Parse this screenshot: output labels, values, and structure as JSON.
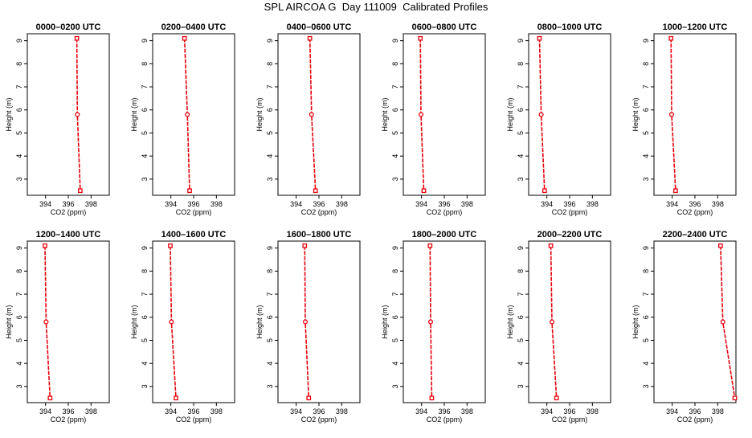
{
  "title": "SPL AIRCOA G  Day 111009  Calibrated Profiles",
  "colors": {
    "line": "#e8000b",
    "axis": "#000000",
    "background": "#ffffff"
  },
  "chart_data": [
    {
      "type": "line",
      "title": "0000–0200 UTC",
      "xlabel": "CO2 (ppm)",
      "ylabel": "Height (m)",
      "xlim": [
        392.4,
        399.6
      ],
      "ylim": [
        2.3,
        9.3
      ],
      "xticks": [
        394,
        396,
        398
      ],
      "yticks": [
        3,
        4,
        5,
        6,
        7,
        8,
        9
      ],
      "series": [
        {
          "x": [
            396.75,
            396.8,
            397.05
          ],
          "y": [
            9.1,
            5.8,
            2.5
          ]
        }
      ]
    },
    {
      "type": "line",
      "title": "0200–0400 UTC",
      "xlabel": "CO2 (ppm)",
      "ylabel": "Height (m)",
      "xlim": [
        392.4,
        399.6
      ],
      "ylim": [
        2.3,
        9.3
      ],
      "xticks": [
        394,
        396,
        398
      ],
      "yticks": [
        3,
        4,
        5,
        6,
        7,
        8,
        9
      ],
      "series": [
        {
          "x": [
            395.2,
            395.45,
            395.65
          ],
          "y": [
            9.1,
            5.8,
            2.5
          ]
        }
      ]
    },
    {
      "type": "line",
      "title": "0400–0600 UTC",
      "xlabel": "CO2 (ppm)",
      "ylabel": "Height (m)",
      "xlim": [
        392.4,
        399.6
      ],
      "ylim": [
        2.3,
        9.3
      ],
      "xticks": [
        394,
        396,
        398
      ],
      "yticks": [
        3,
        4,
        5,
        6,
        7,
        8,
        9
      ],
      "series": [
        {
          "x": [
            395.2,
            395.35,
            395.7
          ],
          "y": [
            9.1,
            5.8,
            2.5
          ]
        }
      ]
    },
    {
      "type": "line",
      "title": "0600–0800 UTC",
      "xlabel": "CO2 (ppm)",
      "ylabel": "Height (m)",
      "xlim": [
        392.4,
        399.6
      ],
      "ylim": [
        2.3,
        9.3
      ],
      "xticks": [
        394,
        396,
        398
      ],
      "yticks": [
        3,
        4,
        5,
        6,
        7,
        8,
        9
      ],
      "series": [
        {
          "x": [
            393.9,
            393.95,
            394.2
          ],
          "y": [
            9.1,
            5.8,
            2.5
          ]
        }
      ]
    },
    {
      "type": "line",
      "title": "0800–1000 UTC",
      "xlabel": "CO2 (ppm)",
      "ylabel": "Height (m)",
      "xlim": [
        392.4,
        399.6
      ],
      "ylim": [
        2.3,
        9.3
      ],
      "xticks": [
        394,
        396,
        398
      ],
      "yticks": [
        3,
        4,
        5,
        6,
        7,
        8,
        9
      ],
      "series": [
        {
          "x": [
            393.35,
            393.5,
            393.8
          ],
          "y": [
            9.1,
            5.8,
            2.5
          ]
        }
      ]
    },
    {
      "type": "line",
      "title": "1000–1200 UTC",
      "xlabel": "CO2 (ppm)",
      "ylabel": "Height (m)",
      "xlim": [
        392.4,
        399.6
      ],
      "ylim": [
        2.3,
        9.3
      ],
      "xticks": [
        394,
        396,
        398
      ],
      "yticks": [
        3,
        4,
        5,
        6,
        7,
        8,
        9
      ],
      "series": [
        {
          "x": [
            393.9,
            393.95,
            394.3
          ],
          "y": [
            9.1,
            5.8,
            2.5
          ]
        }
      ]
    },
    {
      "type": "line",
      "title": "1200–1400 UTC",
      "xlabel": "CO2 (ppm)",
      "ylabel": "Height (m)",
      "xlim": [
        392.4,
        399.6
      ],
      "ylim": [
        2.3,
        9.3
      ],
      "xticks": [
        394,
        396,
        398
      ],
      "yticks": [
        3,
        4,
        5,
        6,
        7,
        8,
        9
      ],
      "series": [
        {
          "x": [
            393.95,
            394.05,
            394.4
          ],
          "y": [
            9.1,
            5.8,
            2.5
          ]
        }
      ]
    },
    {
      "type": "line",
      "title": "1400–1600 UTC",
      "xlabel": "CO2 (ppm)",
      "ylabel": "Height (m)",
      "xlim": [
        392.4,
        399.6
      ],
      "ylim": [
        2.3,
        9.3
      ],
      "xticks": [
        394,
        396,
        398
      ],
      "yticks": [
        3,
        4,
        5,
        6,
        7,
        8,
        9
      ],
      "series": [
        {
          "x": [
            393.95,
            394.05,
            394.45
          ],
          "y": [
            9.1,
            5.8,
            2.5
          ]
        }
      ]
    },
    {
      "type": "line",
      "title": "1600–1800 UTC",
      "xlabel": "CO2 (ppm)",
      "ylabel": "Height (m)",
      "xlim": [
        392.4,
        399.6
      ],
      "ylim": [
        2.3,
        9.3
      ],
      "xticks": [
        394,
        396,
        398
      ],
      "yticks": [
        3,
        4,
        5,
        6,
        7,
        8,
        9
      ],
      "series": [
        {
          "x": [
            394.75,
            394.8,
            395.1
          ],
          "y": [
            9.1,
            5.8,
            2.5
          ]
        }
      ]
    },
    {
      "type": "line",
      "title": "1800–2000 UTC",
      "xlabel": "CO2 (ppm)",
      "ylabel": "Height (m)",
      "xlim": [
        392.4,
        399.6
      ],
      "ylim": [
        2.3,
        9.3
      ],
      "xticks": [
        394,
        396,
        398
      ],
      "yticks": [
        3,
        4,
        5,
        6,
        7,
        8,
        9
      ],
      "series": [
        {
          "x": [
            394.75,
            394.8,
            394.9
          ],
          "y": [
            9.1,
            5.8,
            2.5
          ]
        }
      ]
    },
    {
      "type": "line",
      "title": "2000–2200 UTC",
      "xlabel": "CO2 (ppm)",
      "ylabel": "Height (m)",
      "xlim": [
        392.4,
        399.6
      ],
      "ylim": [
        2.3,
        9.3
      ],
      "xticks": [
        394,
        396,
        398
      ],
      "yticks": [
        3,
        4,
        5,
        6,
        7,
        8,
        9
      ],
      "series": [
        {
          "x": [
            394.35,
            394.45,
            394.85
          ],
          "y": [
            9.1,
            5.8,
            2.5
          ]
        }
      ]
    },
    {
      "type": "line",
      "title": "2200–2400 UTC",
      "xlabel": "CO2 (ppm)",
      "ylabel": "Height (m)",
      "xlim": [
        392.4,
        399.6
      ],
      "ylim": [
        2.3,
        9.3
      ],
      "xticks": [
        394,
        396,
        398
      ],
      "yticks": [
        3,
        4,
        5,
        6,
        7,
        8,
        9
      ],
      "series": [
        {
          "x": [
            398.25,
            398.45,
            399.5
          ],
          "y": [
            9.1,
            5.8,
            2.5
          ]
        }
      ]
    }
  ]
}
